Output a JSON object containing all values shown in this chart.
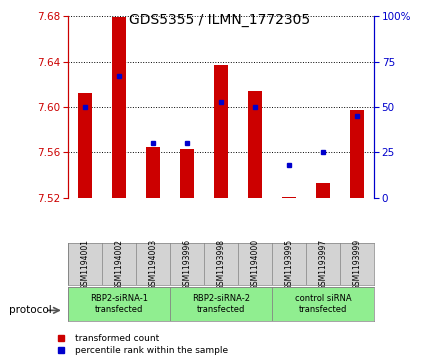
{
  "title": "GDS5355 / ILMN_1772305",
  "samples": [
    "GSM1194001",
    "GSM1194002",
    "GSM1194003",
    "GSM1193996",
    "GSM1193998",
    "GSM1194000",
    "GSM1193995",
    "GSM1193997",
    "GSM1193999"
  ],
  "red_values": [
    7.612,
    7.679,
    7.565,
    7.563,
    7.637,
    7.614,
    7.521,
    7.533,
    7.597
  ],
  "blue_values": [
    50,
    67,
    30,
    30,
    53,
    50,
    18,
    25,
    45
  ],
  "ylim_left": [
    7.52,
    7.68
  ],
  "ylim_right": [
    0,
    100
  ],
  "yticks_left": [
    7.52,
    7.56,
    7.6,
    7.64,
    7.68
  ],
  "yticks_right": [
    0,
    25,
    50,
    75,
    100
  ],
  "ytick_labels_right": [
    "0",
    "25",
    "50",
    "75",
    "100%"
  ],
  "groups": [
    {
      "label": "RBP2-siRNA-1\ntransfected",
      "start": 0,
      "end": 3,
      "color": "#90EE90"
    },
    {
      "label": "RBP2-siRNA-2\ntransfected",
      "start": 3,
      "end": 6,
      "color": "#90EE90"
    },
    {
      "label": "control siRNA\ntransfected",
      "start": 6,
      "end": 9,
      "color": "#90EE90"
    }
  ],
  "bar_color": "#CC0000",
  "dot_color": "#0000CC",
  "left_tick_color": "#CC0000",
  "right_tick_color": "#0000CC",
  "background_color": "#ffffff",
  "plot_bg_color": "#ffffff",
  "sample_bg_color": "#d3d3d3",
  "base_value": 7.52,
  "legend_red": "transformed count",
  "legend_blue": "percentile rank within the sample",
  "protocol_label": "protocol"
}
